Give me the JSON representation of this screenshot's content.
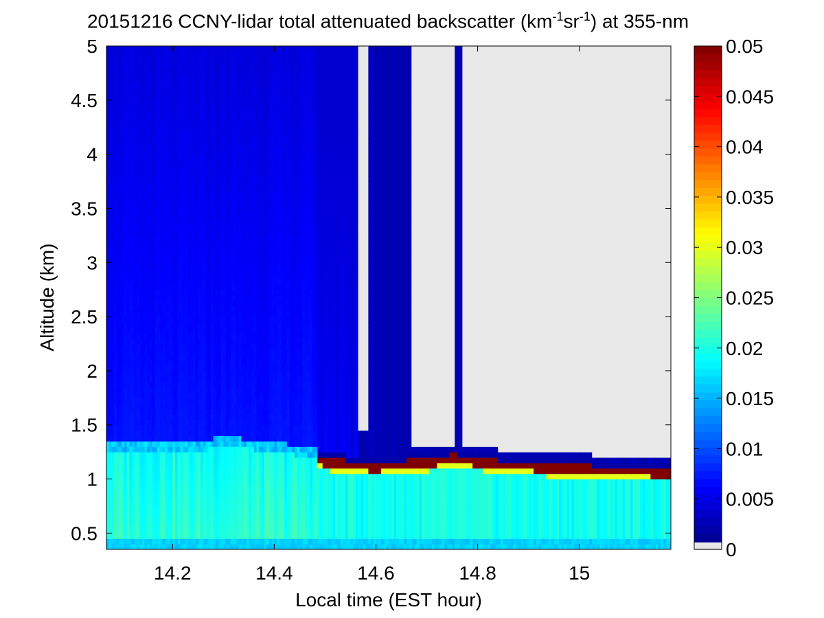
{
  "chart_data": {
    "type": "heatmap",
    "title": {
      "prefix": "20151216 CCNY-lidar total attenuated backscatter (km",
      "exp1": "-1",
      "mid": "sr",
      "exp2": "-1",
      "suffix": ") at 355-nm"
    },
    "xlabel": "Local time (EST hour)",
    "ylabel": "Altitude (km)",
    "xlim": [
      14.07,
      15.18
    ],
    "ylim": [
      0.35,
      5
    ],
    "xticks": [
      "14.2",
      "14.4",
      "14.6",
      "14.8",
      "15"
    ],
    "xtick_values": [
      14.2,
      14.4,
      14.6,
      14.8,
      15.0
    ],
    "yticks": [
      "0.5",
      "1",
      "1.5",
      "2",
      "2.5",
      "3",
      "3.5",
      "4",
      "4.5",
      "5"
    ],
    "ytick_values": [
      0.5,
      1,
      1.5,
      2,
      2.5,
      3,
      3.5,
      4,
      4.5,
      5
    ],
    "colorbar": {
      "colormap": "jet",
      "range": [
        0,
        0.05
      ],
      "ticks": [
        "0",
        "0.005",
        "0.01",
        "0.015",
        "0.02",
        "0.025",
        "0.03",
        "0.035",
        "0.04",
        "0.045",
        "0.05"
      ],
      "tick_values": [
        0,
        0.005,
        0.01,
        0.015,
        0.02,
        0.025,
        0.03,
        0.035,
        0.04,
        0.045,
        0.05
      ],
      "missing_color": "#e8e8e8"
    },
    "missing_color": "#e8e8e8",
    "pbl_top_profile": {
      "time": [
        14.07,
        14.15,
        14.25,
        14.3,
        14.35,
        14.4,
        14.45,
        14.5,
        14.55,
        14.6,
        14.65,
        14.7,
        14.75,
        14.8,
        14.85,
        14.9,
        14.95,
        15.0,
        15.05,
        15.1,
        15.18
      ],
      "altitude_km": [
        1.28,
        1.28,
        1.29,
        1.33,
        1.31,
        1.28,
        1.25,
        1.2,
        1.17,
        1.15,
        1.17,
        1.19,
        1.23,
        1.2,
        1.17,
        1.16,
        1.14,
        1.13,
        1.12,
        1.11,
        1.1
      ]
    },
    "segments": [
      {
        "time_range": [
          14.07,
          14.487
        ],
        "description": "aerosol layer below ~1.3 km (~0.018), clear air above (~0.006 decreasing with altitude)"
      },
      {
        "time_range": [
          14.487,
          14.565
        ],
        "description": "dense cloud layer (>=0.05) near 1.15-1.2 km, weakening signal above"
      },
      {
        "time_range": [
          14.565,
          14.585
        ],
        "description": "missing data above ~1.45 km"
      },
      {
        "time_range": [
          14.585,
          14.668
        ],
        "description": "low signal (~0.002) above cloud"
      },
      {
        "time_range": [
          14.668,
          14.754
        ],
        "description": "missing data above ~1.3 km"
      },
      {
        "time_range": [
          14.754,
          14.77
        ],
        "description": "low signal column to 5 km"
      },
      {
        "time_range": [
          14.77,
          15.18
        ],
        "description": "missing data above ~1.28 km, dense cloud at ~1.05-1.2 km"
      }
    ]
  }
}
